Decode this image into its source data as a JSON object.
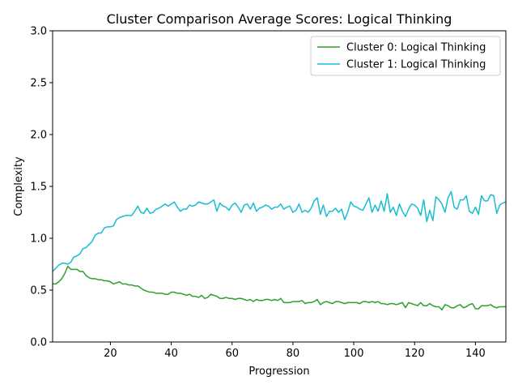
{
  "chart_data": {
    "type": "line",
    "title": "Cluster Comparison Average Scores: Logical Thinking",
    "xlabel": "Progression",
    "ylabel": "Complexity",
    "xlim": [
      1,
      150
    ],
    "ylim": [
      0,
      3
    ],
    "xticks": [
      20,
      40,
      60,
      80,
      100,
      120,
      140
    ],
    "yticks": [
      0.0,
      0.5,
      1.0,
      1.5,
      2.0,
      2.5,
      3.0
    ],
    "grid": false,
    "legend_position": "top-right",
    "series": [
      {
        "name": "Cluster 0: Logical Thinking",
        "color": "#2ca02c",
        "x": [
          1,
          2,
          3,
          4,
          5,
          6,
          7,
          8,
          9,
          10,
          11,
          12,
          13,
          14,
          15,
          16,
          17,
          18,
          19,
          20,
          21,
          22,
          23,
          24,
          25,
          26,
          27,
          28,
          29,
          30,
          31,
          32,
          33,
          34,
          35,
          36,
          37,
          38,
          39,
          40,
          41,
          42,
          43,
          44,
          45,
          46,
          47,
          48,
          49,
          50,
          51,
          52,
          53,
          54,
          55,
          56,
          57,
          58,
          59,
          60,
          61,
          62,
          63,
          64,
          65,
          66,
          67,
          68,
          69,
          70,
          71,
          72,
          73,
          74,
          75,
          76,
          77,
          78,
          79,
          80,
          81,
          82,
          83,
          84,
          85,
          86,
          87,
          88,
          89,
          90,
          91,
          92,
          93,
          94,
          95,
          96,
          97,
          98,
          99,
          100,
          101,
          102,
          103,
          104,
          105,
          106,
          107,
          108,
          109,
          110,
          111,
          112,
          113,
          114,
          115,
          116,
          117,
          118,
          119,
          120,
          121,
          122,
          123,
          124,
          125,
          126,
          127,
          128,
          129,
          130,
          131,
          132,
          133,
          134,
          135,
          136,
          137,
          138,
          139,
          140,
          141,
          142,
          143,
          144,
          145,
          146,
          147,
          148,
          149,
          150
        ],
        "values": [
          0.56,
          0.56,
          0.58,
          0.61,
          0.66,
          0.73,
          0.7,
          0.7,
          0.7,
          0.68,
          0.68,
          0.64,
          0.62,
          0.61,
          0.61,
          0.6,
          0.6,
          0.59,
          0.59,
          0.58,
          0.56,
          0.57,
          0.58,
          0.56,
          0.56,
          0.55,
          0.55,
          0.54,
          0.54,
          0.52,
          0.5,
          0.49,
          0.48,
          0.48,
          0.47,
          0.47,
          0.47,
          0.46,
          0.46,
          0.48,
          0.48,
          0.47,
          0.47,
          0.46,
          0.45,
          0.46,
          0.44,
          0.44,
          0.43,
          0.45,
          0.42,
          0.43,
          0.46,
          0.45,
          0.44,
          0.42,
          0.42,
          0.43,
          0.42,
          0.42,
          0.41,
          0.42,
          0.42,
          0.41,
          0.4,
          0.41,
          0.39,
          0.41,
          0.4,
          0.4,
          0.41,
          0.41,
          0.4,
          0.41,
          0.4,
          0.42,
          0.38,
          0.38,
          0.38,
          0.39,
          0.39,
          0.39,
          0.4,
          0.37,
          0.38,
          0.38,
          0.39,
          0.41,
          0.36,
          0.38,
          0.39,
          0.38,
          0.37,
          0.39,
          0.39,
          0.38,
          0.37,
          0.38,
          0.38,
          0.38,
          0.38,
          0.37,
          0.39,
          0.39,
          0.38,
          0.39,
          0.38,
          0.39,
          0.37,
          0.37,
          0.36,
          0.37,
          0.37,
          0.36,
          0.37,
          0.38,
          0.33,
          0.38,
          0.37,
          0.36,
          0.35,
          0.38,
          0.35,
          0.35,
          0.37,
          0.35,
          0.34,
          0.34,
          0.31,
          0.36,
          0.35,
          0.33,
          0.33,
          0.35,
          0.36,
          0.33,
          0.34,
          0.36,
          0.37,
          0.32,
          0.32,
          0.35,
          0.35,
          0.35,
          0.36,
          0.34,
          0.33,
          0.34,
          0.34,
          0.34
        ]
      },
      {
        "name": "Cluster 1: Logical Thinking",
        "color": "#17becf",
        "x": [
          1,
          2,
          3,
          4,
          5,
          6,
          7,
          8,
          9,
          10,
          11,
          12,
          13,
          14,
          15,
          16,
          17,
          18,
          19,
          20,
          21,
          22,
          23,
          24,
          25,
          26,
          27,
          28,
          29,
          30,
          31,
          32,
          33,
          34,
          35,
          36,
          37,
          38,
          39,
          40,
          41,
          42,
          43,
          44,
          45,
          46,
          47,
          48,
          49,
          50,
          51,
          52,
          53,
          54,
          55,
          56,
          57,
          58,
          59,
          60,
          61,
          62,
          63,
          64,
          65,
          66,
          67,
          68,
          69,
          70,
          71,
          72,
          73,
          74,
          75,
          76,
          77,
          78,
          79,
          80,
          81,
          82,
          83,
          84,
          85,
          86,
          87,
          88,
          89,
          90,
          91,
          92,
          93,
          94,
          95,
          96,
          97,
          98,
          99,
          100,
          101,
          102,
          103,
          104,
          105,
          106,
          107,
          108,
          109,
          110,
          111,
          112,
          113,
          114,
          115,
          116,
          117,
          118,
          119,
          120,
          121,
          122,
          123,
          124,
          125,
          126,
          127,
          128,
          129,
          130,
          131,
          132,
          133,
          134,
          135,
          136,
          137,
          138,
          139,
          140,
          141,
          142,
          143,
          144,
          145,
          146,
          147,
          148,
          149,
          150
        ],
        "values": [
          0.68,
          0.71,
          0.74,
          0.76,
          0.76,
          0.75,
          0.77,
          0.82,
          0.83,
          0.85,
          0.9,
          0.91,
          0.94,
          0.97,
          1.03,
          1.05,
          1.05,
          1.1,
          1.11,
          1.11,
          1.12,
          1.18,
          1.2,
          1.21,
          1.22,
          1.22,
          1.22,
          1.26,
          1.31,
          1.25,
          1.24,
          1.29,
          1.24,
          1.25,
          1.28,
          1.29,
          1.31,
          1.33,
          1.31,
          1.33,
          1.35,
          1.3,
          1.26,
          1.28,
          1.28,
          1.32,
          1.31,
          1.32,
          1.35,
          1.34,
          1.33,
          1.33,
          1.35,
          1.37,
          1.26,
          1.34,
          1.31,
          1.3,
          1.27,
          1.32,
          1.34,
          1.3,
          1.25,
          1.32,
          1.33,
          1.28,
          1.34,
          1.26,
          1.29,
          1.3,
          1.32,
          1.31,
          1.28,
          1.3,
          1.3,
          1.33,
          1.28,
          1.3,
          1.31,
          1.25,
          1.27,
          1.33,
          1.25,
          1.27,
          1.25,
          1.29,
          1.36,
          1.39,
          1.23,
          1.32,
          1.21,
          1.26,
          1.26,
          1.29,
          1.25,
          1.28,
          1.18,
          1.25,
          1.35,
          1.31,
          1.3,
          1.28,
          1.27,
          1.33,
          1.39,
          1.25,
          1.32,
          1.26,
          1.36,
          1.26,
          1.43,
          1.25,
          1.3,
          1.22,
          1.33,
          1.26,
          1.21,
          1.28,
          1.33,
          1.32,
          1.29,
          1.22,
          1.37,
          1.16,
          1.27,
          1.17,
          1.4,
          1.37,
          1.33,
          1.25,
          1.39,
          1.45,
          1.3,
          1.28,
          1.37,
          1.37,
          1.41,
          1.26,
          1.24,
          1.3,
          1.23,
          1.41,
          1.36,
          1.36,
          1.42,
          1.41,
          1.24,
          1.32,
          1.34,
          1.35
        ]
      }
    ]
  }
}
